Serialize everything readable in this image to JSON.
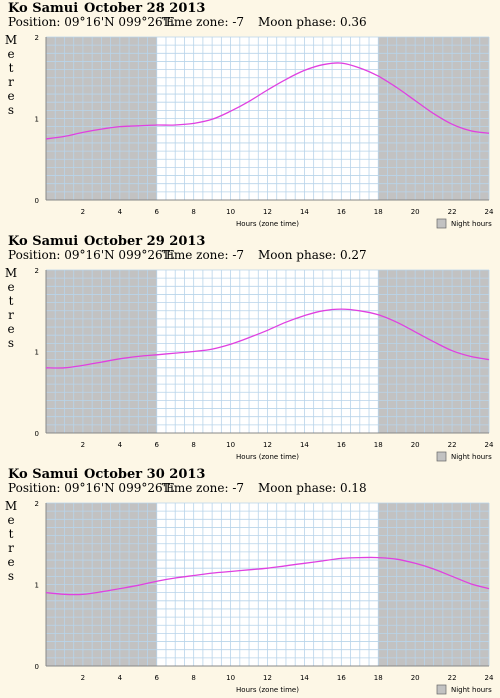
{
  "panels": [
    {
      "place": "Ko Samui",
      "date": "October 28 2013",
      "position": "Position: 09°16'N 099°26'E",
      "timezone": "Time zone: -7",
      "moon": "Moon phase: 0.36"
    },
    {
      "place": "Ko Samui",
      "date": "October 29 2013",
      "position": "Position: 09°16'N 099°26'E",
      "timezone": "Time zone: -7",
      "moon": "Moon phase: 0.27"
    },
    {
      "place": "Ko Samui",
      "date": "October 30 2013",
      "position": "Position: 09°16'N 099°26'E",
      "timezone": "Time zone: -7",
      "moon": "Moon phase: 0.18"
    }
  ],
  "chart_data": [
    {
      "type": "line",
      "ylabel": "Metres",
      "xlabel": "Hours (zone time)",
      "xlim": [
        0,
        24
      ],
      "ylim": [
        0,
        2
      ],
      "xticks": [
        "2",
        "4",
        "6",
        "8",
        "10",
        "12",
        "14",
        "16",
        "18",
        "20",
        "22",
        "24"
      ],
      "yticks": [
        "0",
        "1",
        "2"
      ],
      "night_hours": [
        [
          0,
          6
        ],
        [
          18,
          24
        ]
      ],
      "legend": "Night hours",
      "line_color": "#e040e0",
      "x": [
        0,
        1,
        2,
        3,
        4,
        5,
        6,
        7,
        8,
        9,
        10,
        11,
        12,
        13,
        14,
        15,
        16,
        17,
        18,
        19,
        20,
        21,
        22,
        23,
        24
      ],
      "y": [
        0.75,
        0.78,
        0.83,
        0.87,
        0.9,
        0.91,
        0.92,
        0.92,
        0.94,
        0.99,
        1.09,
        1.21,
        1.35,
        1.48,
        1.59,
        1.66,
        1.68,
        1.62,
        1.52,
        1.38,
        1.22,
        1.06,
        0.93,
        0.85,
        0.82
      ]
    },
    {
      "type": "line",
      "ylabel": "Metres",
      "xlabel": "Hours (zone time)",
      "xlim": [
        0,
        24
      ],
      "ylim": [
        0,
        2
      ],
      "xticks": [
        "2",
        "4",
        "6",
        "8",
        "10",
        "12",
        "14",
        "16",
        "18",
        "20",
        "22",
        "24"
      ],
      "yticks": [
        "0",
        "1",
        "2"
      ],
      "night_hours": [
        [
          0,
          6
        ],
        [
          18,
          24
        ]
      ],
      "legend": "Night hours",
      "line_color": "#e040e0",
      "x": [
        0,
        1,
        2,
        3,
        4,
        5,
        6,
        7,
        8,
        9,
        10,
        11,
        12,
        13,
        14,
        15,
        16,
        17,
        18,
        19,
        20,
        21,
        22,
        23,
        24
      ],
      "y": [
        0.8,
        0.8,
        0.83,
        0.87,
        0.91,
        0.94,
        0.96,
        0.98,
        1.0,
        1.03,
        1.09,
        1.17,
        1.26,
        1.36,
        1.44,
        1.5,
        1.52,
        1.5,
        1.45,
        1.36,
        1.24,
        1.12,
        1.01,
        0.94,
        0.9
      ]
    },
    {
      "type": "line",
      "ylabel": "Metres",
      "xlabel": "Hours (zone time)",
      "xlim": [
        0,
        24
      ],
      "ylim": [
        0,
        2
      ],
      "xticks": [
        "2",
        "4",
        "6",
        "8",
        "10",
        "12",
        "14",
        "16",
        "18",
        "20",
        "22",
        "24"
      ],
      "yticks": [
        "0",
        "1",
        "2"
      ],
      "night_hours": [
        [
          0,
          6
        ],
        [
          18,
          24
        ]
      ],
      "legend": "Night hours",
      "line_color": "#e040e0",
      "x": [
        0,
        1,
        2,
        3,
        4,
        5,
        6,
        7,
        8,
        9,
        10,
        11,
        12,
        13,
        14,
        15,
        16,
        17,
        18,
        19,
        20,
        21,
        22,
        23,
        24
      ],
      "y": [
        0.9,
        0.88,
        0.88,
        0.91,
        0.95,
        0.99,
        1.04,
        1.08,
        1.11,
        1.14,
        1.16,
        1.18,
        1.2,
        1.23,
        1.26,
        1.29,
        1.32,
        1.33,
        1.33,
        1.31,
        1.26,
        1.19,
        1.1,
        1.01,
        0.95
      ]
    }
  ]
}
